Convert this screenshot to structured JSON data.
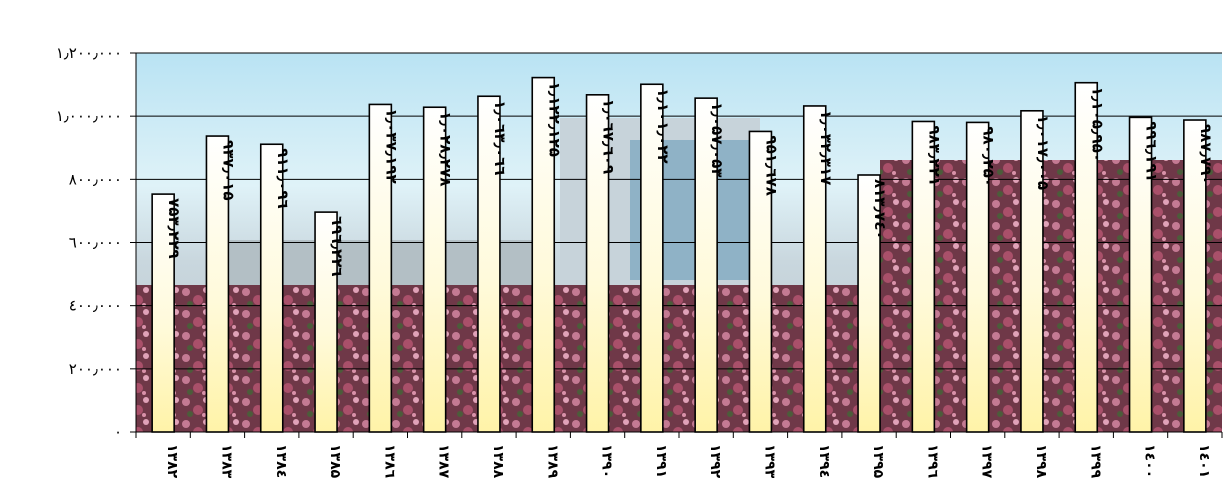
{
  "chart_data": {
    "type": "bar",
    "title": "",
    "xlabel": "",
    "ylabel": "",
    "categories": [
      "۱۳۸۲",
      "۱۳۸۳",
      "۱۳۸٤",
      "۱۳۸۵",
      "۱۳۸٦",
      "۱۳۸۷",
      "۱۳۸۸",
      "۱۳۸۹",
      "۱۳۹۰",
      "۱۳۹۱",
      "۱۳۹۲",
      "۱۳۹۳",
      "۱۳۹٤",
      "۱۳۹۵",
      "۱۳۹٦",
      "۱۳۹۷",
      "۱۳۹۸",
      "۱۳۹۹",
      "۱٤۰۰",
      "۱٤۰۱"
    ],
    "values": [
      753229,
      937015,
      911096,
      696226,
      1037192,
      1028278,
      1063066,
      1122125,
      1067609,
      1101022,
      1057053,
      951678,
      1032317,
      813740,
      983221,
      980250,
      1017005,
      1105950,
      996191,
      987790
    ],
    "data_labels": [
      "۷۵۳٫۲۲۹",
      "۹۳۷٫۰۱۵",
      "۹۱۱٫۰۹٦",
      "٦۹٦٫۲۲٦",
      "۱٫۰۳۷٫۱۹۲",
      "۱٫۰۲۸٫۲۷۸",
      "۱٫۰٦۳٫۰٦٦",
      "۱٫۱۲۲٫۱۲۵",
      "۱٫۰٦۷٫٦۰۹",
      "۱٫۱۰۱٫۰۲۲",
      "۱٫۰۵۷٫۰۵۳",
      "۹۵۱٫٦۷۸",
      "۱٫۰۳۲٫۳۱۷",
      "۸۱۳٫۷٤۰",
      "۹۸۳٫۲۲۱",
      "۹۸۰٫۲۵۰",
      "۱٫۰۱۷٫۰۰۵",
      "۱٫۱۰۵٫۹۵۰",
      "۹۹٦٫۱۹۱",
      "۹۸۷٫۷۹۰"
    ],
    "ylim": [
      0,
      1200000
    ],
    "yticks": [
      0,
      200000,
      400000,
      600000,
      800000,
      1000000,
      1200000
    ],
    "ytick_labels": [
      "۰",
      "۲۰۰٫۰۰۰",
      "٤۰۰٫۰۰۰",
      "٦۰۰٫۰۰۰",
      "۸۰۰٫۰۰۰",
      "۱٫۰۰۰٫۰۰۰",
      "۱٫۲۰۰٫۰۰۰"
    ],
    "grid": true,
    "legend": "none",
    "colors": {
      "bar_top": "#ffffff",
      "bar_bottom": "#fff3a8",
      "bar_edge": "#000000",
      "sky_top": "#b9e3f3",
      "sky_bottom": "#dff2f8",
      "flowers": "#8a3a4c"
    }
  }
}
